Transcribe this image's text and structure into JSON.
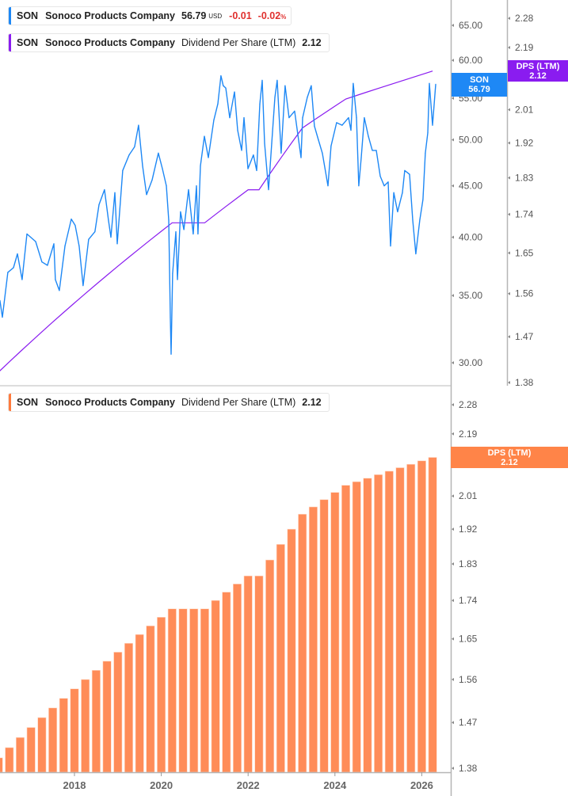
{
  "legend_price": {
    "symbol": "SON",
    "company": "Sonoco Products Company",
    "price": "56.79",
    "currency": "USD",
    "change": "-0.01",
    "change_pct": "-0.02",
    "pct_sign": "%"
  },
  "legend_dps_top": {
    "symbol": "SON",
    "company": "Sonoco Products Company",
    "metric": "Dividend Per Share (LTM)",
    "value": "2.12"
  },
  "legend_dps_bottom": {
    "symbol": "SON",
    "company": "Sonoco Products Company",
    "metric": "Dividend Per Share (LTM)",
    "value": "2.12"
  },
  "tags": {
    "price": {
      "label": "SON",
      "value": "56.79"
    },
    "dps_top": {
      "label": "DPS (LTM)",
      "value": "2.12"
    },
    "dps_bottom": {
      "label": "DPS (LTM)",
      "value": "2.12"
    }
  },
  "colors": {
    "price": "#1e88f5",
    "dps_line": "#8a1cf0",
    "dps_bar": "#ff8c58",
    "negative": "#e0312f"
  },
  "chart_data": [
    {
      "type": "line",
      "title": "",
      "scale": "log",
      "ylim": [
        28,
        68
      ],
      "y_ticks": [
        "65.00",
        "60.00",
        "55.00",
        "50.00",
        "45.00",
        "40.00",
        "35.00",
        "30.00"
      ],
      "series": [
        {
          "name": "SON",
          "points": [
            [
              "2016-04-13",
              34.6
            ],
            [
              "2016-05-03",
              33.3
            ],
            [
              "2016-06-19",
              36.9
            ],
            [
              "2016-08-05",
              37.3
            ],
            [
              "2016-09-08",
              38.5
            ],
            [
              "2016-10-17",
              36.3
            ],
            [
              "2016-11-27",
              40.3
            ],
            [
              "2017-02-09",
              39.6
            ],
            [
              "2017-04-01",
              37.8
            ],
            [
              "2017-05-17",
              37.5
            ],
            [
              "2017-07-10",
              39.4
            ],
            [
              "2017-07-23",
              36.3
            ],
            [
              "2017-08-26",
              35.4
            ],
            [
              "2017-10-12",
              39.2
            ],
            [
              "2017-12-05",
              41.7
            ],
            [
              "2018-01-07",
              41.1
            ],
            [
              "2018-02-10",
              39.2
            ],
            [
              "2018-03-13",
              35.8
            ],
            [
              "2018-04-29",
              39.8
            ],
            [
              "2018-06-21",
              40.5
            ],
            [
              "2018-07-25",
              43.1
            ],
            [
              "2018-09-10",
              44.6
            ],
            [
              "2018-10-13",
              41.6
            ],
            [
              "2018-11-03",
              40.0
            ],
            [
              "2018-12-06",
              44.3
            ],
            [
              "2018-12-26",
              39.4
            ],
            [
              "2019-02-11",
              46.6
            ],
            [
              "2019-04-04",
              48.3
            ],
            [
              "2019-05-20",
              49.2
            ],
            [
              "2019-06-23",
              51.7
            ],
            [
              "2019-07-26",
              47.1
            ],
            [
              "2019-08-29",
              44.1
            ],
            [
              "2019-10-15",
              45.6
            ],
            [
              "2019-12-07",
              48.5
            ],
            [
              "2020-01-10",
              46.8
            ],
            [
              "2020-02-13",
              45.0
            ],
            [
              "2020-03-03",
              41.6
            ],
            [
              "2020-03-16",
              33.3
            ],
            [
              "2020-03-23",
              30.6
            ],
            [
              "2020-04-05",
              36.8
            ],
            [
              "2020-05-02",
              40.5
            ],
            [
              "2020-05-15",
              36.3
            ],
            [
              "2020-06-11",
              42.4
            ],
            [
              "2020-07-08",
              40.7
            ],
            [
              "2020-08-17",
              44.6
            ],
            [
              "2020-09-26",
              40.3
            ],
            [
              "2020-10-23",
              45.0
            ],
            [
              "2020-11-05",
              40.3
            ],
            [
              "2020-11-26",
              47.1
            ],
            [
              "2020-12-29",
              50.4
            ],
            [
              "2021-02-01",
              48.0
            ],
            [
              "2021-03-17",
              52.3
            ],
            [
              "2021-04-20",
              54.3
            ],
            [
              "2021-05-16",
              57.9
            ],
            [
              "2021-06-05",
              56.6
            ],
            [
              "2021-06-26",
              56.3
            ],
            [
              "2021-07-29",
              52.6
            ],
            [
              "2021-09-08",
              55.8
            ],
            [
              "2021-10-04",
              51.1
            ],
            [
              "2021-11-07",
              48.8
            ],
            [
              "2021-11-27",
              52.6
            ],
            [
              "2021-12-30",
              46.8
            ],
            [
              "2022-02-15",
              48.3
            ],
            [
              "2022-03-12",
              46.6
            ],
            [
              "2022-04-08",
              54.3
            ],
            [
              "2022-04-28",
              57.3
            ],
            [
              "2022-05-18",
              49.6
            ],
            [
              "2022-06-21",
              44.6
            ],
            [
              "2022-07-17",
              49.6
            ],
            [
              "2022-08-13",
              55.1
            ],
            [
              "2022-09-02",
              57.3
            ],
            [
              "2022-10-05",
              48.5
            ],
            [
              "2022-11-08",
              56.6
            ],
            [
              "2022-12-11",
              52.6
            ],
            [
              "2023-01-27",
              53.4
            ],
            [
              "2023-03-20",
              48.0
            ],
            [
              "2023-04-03",
              52.6
            ],
            [
              "2023-05-12",
              55.1
            ],
            [
              "2023-06-15",
              56.6
            ],
            [
              "2023-07-11",
              51.6
            ],
            [
              "2023-08-14",
              50.0
            ],
            [
              "2023-09-17",
              48.5
            ],
            [
              "2023-11-03",
              45.0
            ],
            [
              "2023-11-29",
              49.3
            ],
            [
              "2024-01-15",
              52.0
            ],
            [
              "2024-03-01",
              51.7
            ],
            [
              "2024-04-24",
              52.6
            ],
            [
              "2024-05-14",
              51.1
            ],
            [
              "2024-06-03",
              56.9
            ],
            [
              "2024-06-30",
              52.6
            ],
            [
              "2024-07-19",
              45.0
            ],
            [
              "2024-08-09",
              48.0
            ],
            [
              "2024-09-05",
              52.6
            ],
            [
              "2024-10-08",
              50.4
            ],
            [
              "2024-11-11",
              48.8
            ],
            [
              "2024-12-14",
              48.8
            ],
            [
              "2025-01-17",
              46.0
            ],
            [
              "2025-02-20",
              45.0
            ],
            [
              "2025-03-23",
              45.4
            ],
            [
              "2025-04-12",
              39.2
            ],
            [
              "2025-05-09",
              44.3
            ],
            [
              "2025-06-11",
              42.4
            ],
            [
              "2025-07-21",
              44.3
            ],
            [
              "2025-08-10",
              46.6
            ],
            [
              "2025-09-20",
              46.2
            ],
            [
              "2025-10-16",
              41.6
            ],
            [
              "2025-11-12",
              38.5
            ],
            [
              "2025-12-15",
              41.6
            ],
            [
              "2026-01-11",
              43.6
            ],
            [
              "2026-01-31",
              48.5
            ],
            [
              "2026-02-21",
              50.8
            ],
            [
              "2026-03-04",
              56.9
            ],
            [
              "2026-03-31",
              51.7
            ],
            [
              "2026-04-27",
              56.79
            ]
          ]
        },
        {
          "name": "Dividend Per Share (LTM)",
          "axis": "right",
          "scale": "log",
          "ylim": [
            1.37,
            2.31
          ],
          "y_ticks": [
            "2.28",
            "2.19",
            "2.10",
            "2.01",
            "1.92",
            "1.83",
            "1.74",
            "1.65",
            "1.56",
            "1.47",
            "1.38"
          ],
          "uses": "dps_quarterly"
        }
      ]
    },
    {
      "type": "bar",
      "title": "",
      "scale": "log",
      "ylim": [
        1.37,
        2.31
      ],
      "y_ticks": [
        "2.28",
        "2.19",
        "2.10",
        "2.01",
        "1.92",
        "1.83",
        "1.74",
        "1.65",
        "1.56",
        "1.47",
        "1.38"
      ],
      "x_ticks": [
        "2018",
        "2020",
        "2022",
        "2024",
        "2026"
      ],
      "x": [
        "2016-04-01",
        "2016-07-01",
        "2016-10-01",
        "2017-01-01",
        "2017-04-01",
        "2017-07-01",
        "2017-10-01",
        "2018-01-01",
        "2018-04-01",
        "2018-07-01",
        "2018-10-01",
        "2019-01-01",
        "2019-04-01",
        "2019-07-01",
        "2019-10-01",
        "2020-01-01",
        "2020-04-01",
        "2020-07-01",
        "2020-10-01",
        "2021-01-01",
        "2021-04-01",
        "2021-07-01",
        "2021-10-01",
        "2022-01-01",
        "2022-04-01",
        "2022-07-01",
        "2022-10-01",
        "2023-01-01",
        "2023-04-01",
        "2023-07-01",
        "2023-10-01",
        "2024-01-01",
        "2024-04-01",
        "2024-07-01",
        "2024-10-01",
        "2025-01-01",
        "2025-04-01",
        "2025-07-01",
        "2025-10-01",
        "2026-01-01",
        "2026-04-01"
      ],
      "series": [
        {
          "name": "Dividend Per Share (LTM)",
          "values": [
            1.4,
            1.42,
            1.44,
            1.46,
            1.48,
            1.5,
            1.52,
            1.54,
            1.56,
            1.58,
            1.6,
            1.62,
            1.64,
            1.66,
            1.68,
            1.7,
            1.72,
            1.72,
            1.72,
            1.72,
            1.74,
            1.76,
            1.78,
            1.8,
            1.8,
            1.84,
            1.88,
            1.92,
            1.96,
            1.98,
            2.0,
            2.02,
            2.04,
            2.05,
            2.06,
            2.07,
            2.08,
            2.09,
            2.1,
            2.11,
            2.12
          ]
        }
      ]
    }
  ]
}
